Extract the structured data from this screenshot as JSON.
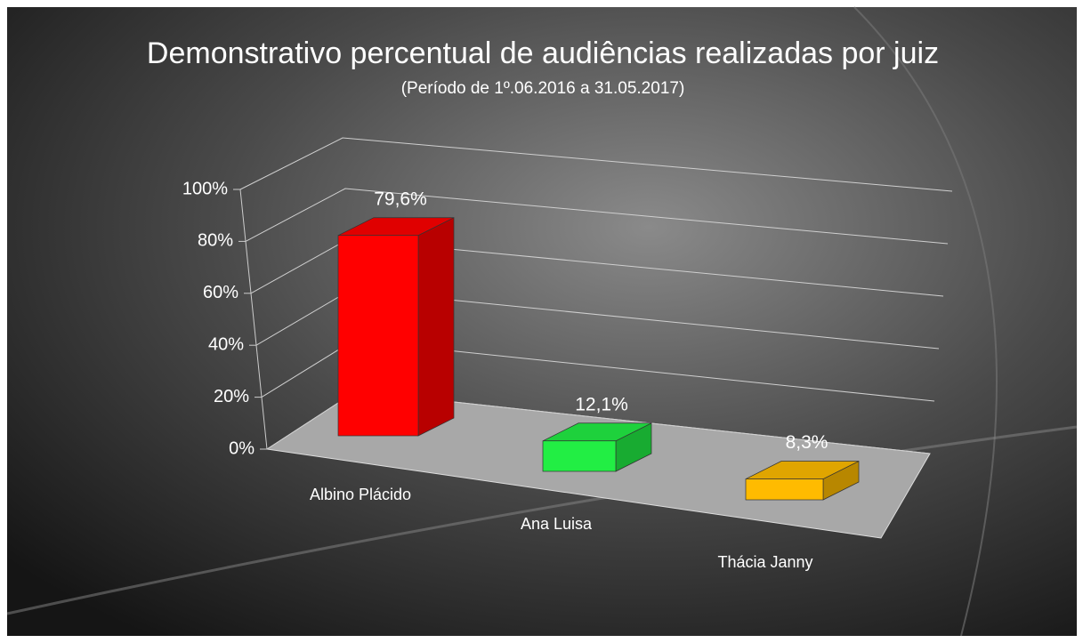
{
  "chart_data": {
    "type": "bar3d",
    "title": "Demonstrativo percentual de audiências realizadas por juiz",
    "subtitle": "(Período de 1º.06.2016  a  31.05.2017)",
    "categories": [
      "Albino Plácido",
      "Ana Luisa",
      "Thácia Janny"
    ],
    "values": [
      79.6,
      12.1,
      8.3
    ],
    "value_labels": [
      "79,6%",
      "12,1%",
      "8,3%"
    ],
    "colors": [
      "#ff0000",
      "#22ee44",
      "#ffbb00"
    ],
    "ylim": [
      0,
      100
    ],
    "yticks": [
      {
        "value": 0,
        "label": "0%"
      },
      {
        "value": 20,
        "label": "20%"
      },
      {
        "value": 40,
        "label": "40%"
      },
      {
        "value": 60,
        "label": "60%"
      },
      {
        "value": 80,
        "label": "80%"
      },
      {
        "value": 100,
        "label": "100%"
      }
    ],
    "grid": true
  }
}
